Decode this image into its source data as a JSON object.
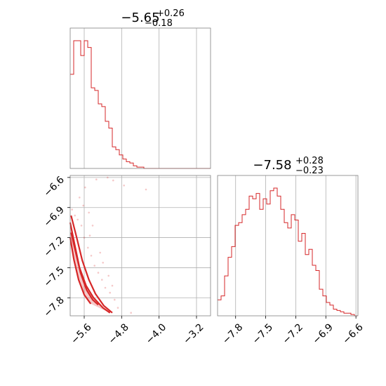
{
  "chart_data": {
    "type": "corner",
    "color": "#d62728",
    "params": [
      {
        "title": {
          "median": "−5.65",
          "plus": "+0.26",
          "minus": "−0.18"
        },
        "range": [
          -5.9,
          -2.9
        ],
        "ticks": [
          -5.6,
          -4.8,
          -4.0,
          -3.2
        ],
        "tick_labels": [
          "−5.6",
          "−4.8",
          "−4.0",
          "−3.2"
        ],
        "hist_edges_start": -5.9,
        "hist_bin_width": 0.075,
        "hist_counts": [
          70,
          95,
          95,
          84,
          95,
          90,
          60,
          58,
          48,
          46,
          35,
          30,
          16,
          14,
          10,
          7,
          5,
          4,
          2,
          1,
          1,
          0,
          0,
          0,
          0,
          0,
          0,
          0,
          0,
          0,
          0,
          0,
          0,
          0,
          0,
          0,
          0,
          0,
          0,
          0
        ]
      },
      {
        "title": {
          "median": "−7.58",
          "plus": "+0.28",
          "minus": "−0.23"
        },
        "range": [
          -7.98,
          -6.58
        ],
        "ticks": [
          -7.8,
          -7.5,
          -7.2,
          -6.9,
          -6.6
        ],
        "tick_labels": [
          "−7.8",
          "−7.5",
          "−7.2",
          "−6.9",
          "−6.6"
        ],
        "hist_edges_start": -7.98,
        "hist_bin_width": 0.035,
        "hist_counts": [
          12,
          15,
          30,
          44,
          52,
          68,
          70,
          76,
          80,
          90,
          88,
          92,
          80,
          88,
          84,
          94,
          96,
          90,
          80,
          70,
          66,
          76,
          72,
          56,
          62,
          46,
          50,
          38,
          34,
          20,
          15,
          10,
          8,
          5,
          4,
          3,
          2,
          2,
          1,
          0
        ]
      }
    ],
    "joint_yticks": [
      -6.6,
      -6.9,
      -7.2,
      -7.5,
      -7.8
    ],
    "joint_ytick_labels": [
      "−6.6",
      "−6.9",
      "−7.2",
      "−7.5",
      "−7.8"
    ],
    "joint_contours": [
      [
        [
          -5.88,
          -7.15
        ],
        [
          -5.78,
          -7.35
        ],
        [
          -5.68,
          -7.55
        ],
        [
          -5.55,
          -7.72
        ],
        [
          -5.42,
          -7.82
        ],
        [
          -5.3,
          -7.87
        ]
      ],
      [
        [
          -5.9,
          -7.05
        ],
        [
          -5.8,
          -7.28
        ],
        [
          -5.7,
          -7.5
        ],
        [
          -5.56,
          -7.68
        ],
        [
          -5.4,
          -7.8
        ],
        [
          -5.2,
          -7.9
        ],
        [
          -5.05,
          -7.95
        ]
      ],
      [
        [
          -5.88,
          -6.98
        ],
        [
          -5.76,
          -7.2
        ],
        [
          -5.64,
          -7.43
        ],
        [
          -5.5,
          -7.62
        ],
        [
          -5.36,
          -7.76
        ],
        [
          -5.18,
          -7.88
        ],
        [
          -5.0,
          -7.95
        ]
      ],
      [
        [
          -5.9,
          -7.2
        ],
        [
          -5.82,
          -7.42
        ],
        [
          -5.72,
          -7.62
        ],
        [
          -5.6,
          -7.77
        ],
        [
          -5.46,
          -7.86
        ]
      ]
    ],
    "joint_scatter": [
      [
        -5.86,
        -6.92
      ],
      [
        -5.8,
        -6.98
      ],
      [
        -5.74,
        -7.02
      ],
      [
        -5.66,
        -7.08
      ],
      [
        -5.6,
        -7.2
      ],
      [
        -5.52,
        -7.3
      ],
      [
        -5.45,
        -7.38
      ],
      [
        -5.38,
        -7.48
      ],
      [
        -5.3,
        -7.55
      ],
      [
        -5.22,
        -7.62
      ],
      [
        -5.15,
        -7.7
      ],
      [
        -5.05,
        -7.75
      ],
      [
        -4.95,
        -7.82
      ],
      [
        -4.88,
        -7.9
      ],
      [
        -5.5,
        -6.95
      ],
      [
        -5.42,
        -7.08
      ],
      [
        -5.7,
        -6.8
      ],
      [
        -5.58,
        -6.7
      ],
      [
        -5.34,
        -6.62
      ],
      [
        -5.1,
        -6.6
      ],
      [
        -4.98,
        -6.63
      ],
      [
        -4.75,
        -6.68
      ],
      [
        -4.28,
        -6.72
      ],
      [
        -4.6,
        -7.95
      ],
      [
        -5.62,
        -6.88
      ],
      [
        -5.48,
        -7.18
      ],
      [
        -5.26,
        -7.35
      ],
      [
        -5.2,
        -7.45
      ],
      [
        -5.08,
        -7.58
      ],
      [
        -5.0,
        -7.68
      ]
    ]
  }
}
